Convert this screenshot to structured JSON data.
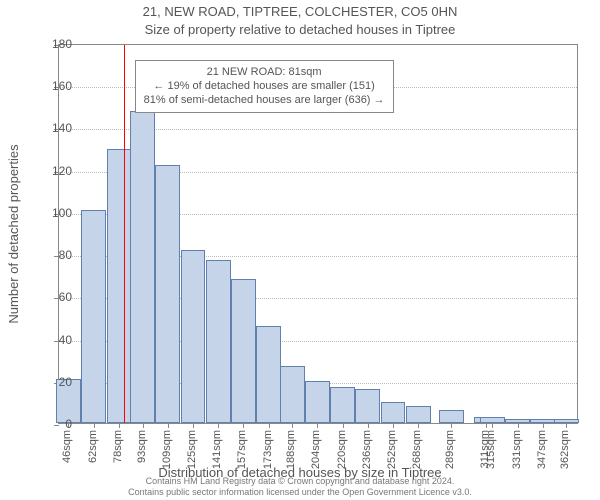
{
  "title_main": "21, NEW ROAD, TIPTREE, COLCHESTER, CO5 0HN",
  "title_sub": "Size of property relative to detached houses in Tiptree",
  "ylabel": "Number of detached properties",
  "xlabel": "Distribution of detached houses by size in Tiptree",
  "credits_line1": "Contains HM Land Registry data © Crown copyright and database right 2024.",
  "credits_line2": "Contains public sector information licensed under the Open Government Licence v3.0.",
  "chart": {
    "type": "histogram",
    "ylim": [
      0,
      180
    ],
    "ytick_step": 20,
    "yticks": [
      0,
      20,
      40,
      60,
      80,
      100,
      120,
      140,
      160,
      180
    ],
    "xlim": [
      40,
      370
    ],
    "bar_width_units": 15.7,
    "categories": [
      "46sqm",
      "62sqm",
      "78sqm",
      "93sqm",
      "109sqm",
      "125sqm",
      "141sqm",
      "157sqm",
      "173sqm",
      "188sqm",
      "204sqm",
      "220sqm",
      "236sqm",
      "252sqm",
      "268sqm",
      "289sqm",
      "311sqm",
      "315sqm",
      "331sqm",
      "347sqm",
      "362sqm"
    ],
    "bar_centers": [
      46,
      62,
      78,
      93,
      109,
      125,
      141,
      157,
      173,
      188,
      204,
      220,
      236,
      252,
      268,
      289,
      311,
      315,
      331,
      347,
      362
    ],
    "values": [
      21,
      101,
      130,
      148,
      122,
      82,
      77,
      68,
      46,
      27,
      20,
      17,
      16,
      10,
      8,
      6,
      3,
      3,
      2,
      2,
      2
    ],
    "bar_fill": "#c6d4ea",
    "bar_stroke": "#6080b0",
    "grid_color": "#bbbbbb",
    "axis_color": "#888888",
    "background": "#ffffff",
    "reference_line": {
      "x": 81,
      "color": "#ff0000",
      "width": 1
    }
  },
  "annotation": {
    "line1": "21 NEW ROAD: 81sqm",
    "line2": "← 19% of detached houses are smaller (151)",
    "line3": "81% of semi-detached houses are larger (636) →",
    "box_border": "#888888",
    "box_bg": "#ffffff",
    "fontsize": 11,
    "position_units": {
      "x": 88,
      "y_top": 173
    }
  }
}
